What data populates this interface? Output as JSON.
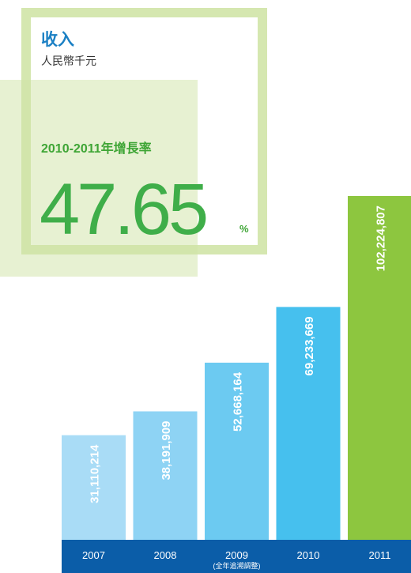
{
  "chart_data": {
    "type": "bar",
    "title": "收入",
    "subtitle": "人民幣千元",
    "growth_label": "2010-2011年增長率",
    "growth_value": 47.65,
    "growth_unit": "%",
    "categories": [
      "2007",
      "2008",
      "2009",
      "2010",
      "2011"
    ],
    "category_notes": [
      null,
      null,
      "(全年追溯調整)",
      null,
      null
    ],
    "values": [
      31110214,
      38191909,
      52668164,
      69233669,
      102224807
    ],
    "value_labels": [
      "31,110,214",
      "38,191,909",
      "52,668,164",
      "69,233,669",
      "102,224,807"
    ],
    "colors": [
      "#a9dcf6",
      "#8ed3f4",
      "#6ccaf1",
      "#46c0ee",
      "#8dc63f"
    ]
  }
}
